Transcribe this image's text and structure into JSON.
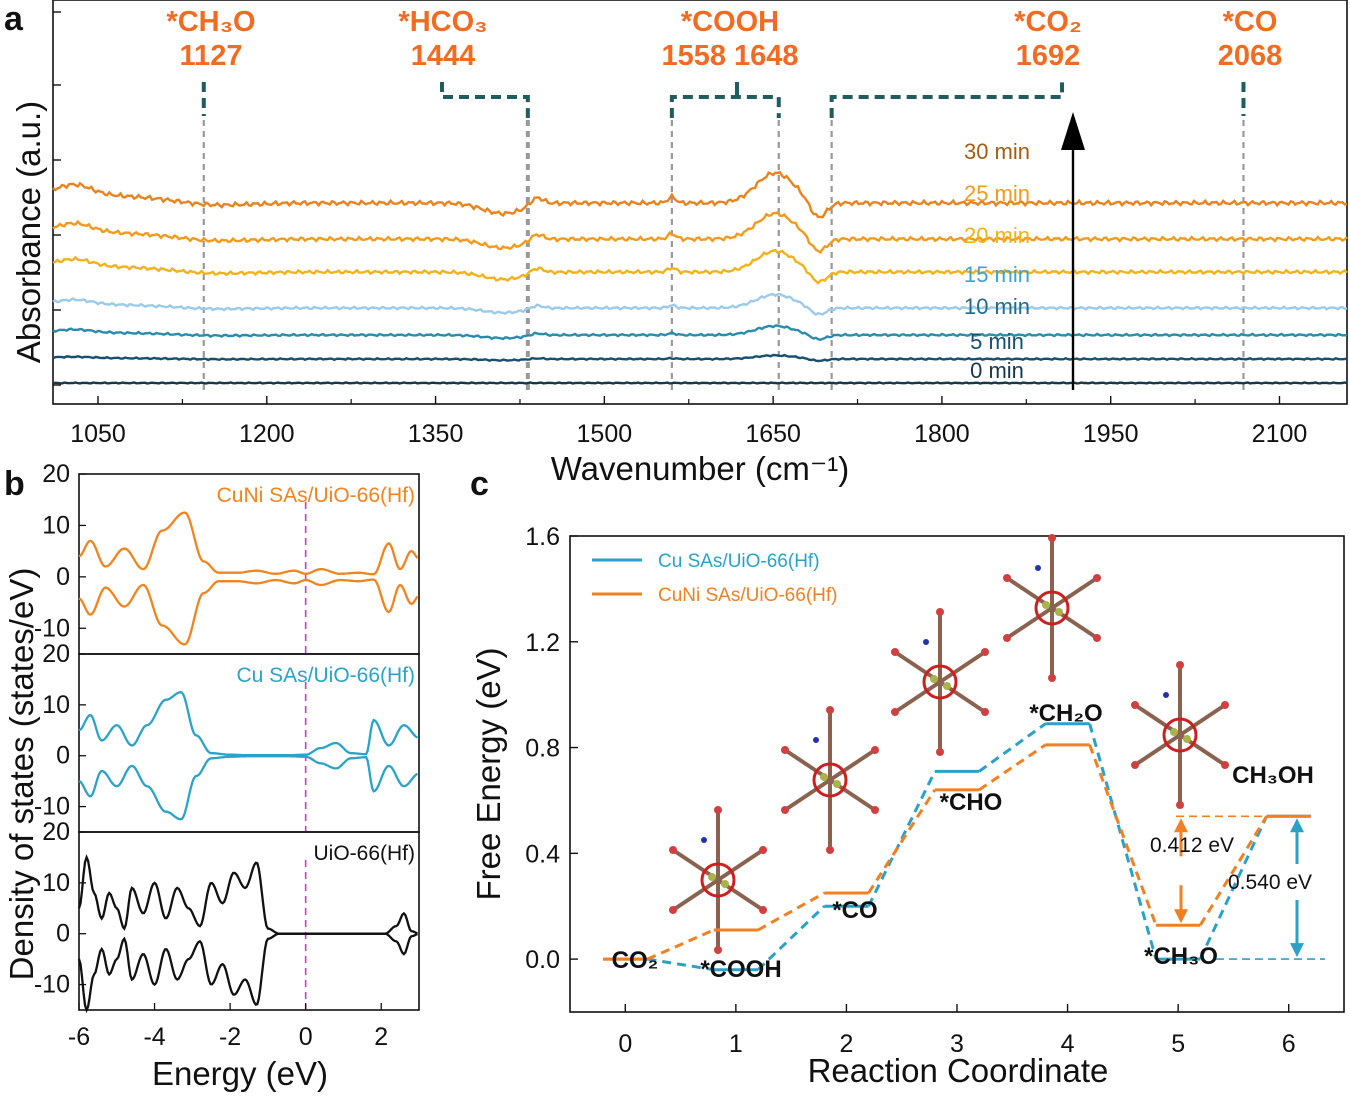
{
  "chart_data": [
    {
      "panel": "a",
      "type": "line",
      "xlabel": "Wavenumber (cm⁻¹)",
      "ylabel": "Absorbance (a.u.)",
      "xlim": [
        1010,
        2160
      ],
      "xticks": [
        1050,
        1200,
        1350,
        1500,
        1650,
        1800,
        1950,
        2100
      ],
      "marker_lines": [
        1144,
        1432,
        1560,
        1655,
        1702,
        2068
      ],
      "peak_labels": [
        {
          "species": "*CH₃O",
          "value": "1127"
        },
        {
          "species": "*HCO₃",
          "value": "1444"
        },
        {
          "species": "*COOH",
          "value": "1558 1648"
        },
        {
          "species": "*CO₂",
          "value": "1692"
        },
        {
          "species": "*CO",
          "value": "2068"
        }
      ],
      "series": [
        {
          "name": "30 min",
          "color": "#e8831f",
          "offset": 6.0,
          "scale": 1.0
        },
        {
          "name": "25 min",
          "color": "#f39a1c",
          "offset": 4.8,
          "scale": 0.85
        },
        {
          "name": "20 min",
          "color": "#f2b21a",
          "offset": 3.7,
          "scale": 0.7
        },
        {
          "name": "15 min",
          "color": "#9ccbe9",
          "offset": 2.5,
          "scale": 0.45
        },
        {
          "name": "10 min",
          "color": "#2a8cad",
          "offset": 1.6,
          "scale": 0.3
        },
        {
          "name": "5 min",
          "color": "#17506e",
          "offset": 0.8,
          "scale": 0.12
        },
        {
          "name": "0 min",
          "color": "#17384a",
          "offset": 0.0,
          "scale": 0.0
        }
      ],
      "legend_colors": [
        "#a55c12",
        "#f39a1c",
        "#f2b21a",
        "#3aa6cf",
        "#1e6c8c",
        "#17506e",
        "#17384a"
      ]
    },
    {
      "panel": "b",
      "type": "line",
      "xlabel": "Energy (eV)",
      "ylabel": "Density of states (states/eV)",
      "xlim": [
        -6,
        3
      ],
      "xticks": [
        -6,
        -4,
        -2,
        0,
        2
      ],
      "ylim": [
        -15,
        20
      ],
      "yticks": [
        20,
        10,
        0,
        -10
      ],
      "fermi_level": 0,
      "series": [
        {
          "name": "CuNi SAs/UiO-66(Hf)",
          "color": "#f0841e",
          "x": [
            -6.0,
            -5.7,
            -5.3,
            -4.8,
            -4.3,
            -3.8,
            -3.2,
            -2.7,
            -2.3,
            -1.8,
            -1.3,
            -0.8,
            -0.3,
            0.0,
            0.4,
            0.9,
            1.4,
            1.8,
            2.2,
            2.5,
            2.8,
            3.0
          ],
          "up": [
            4,
            7,
            2,
            5.5,
            1.5,
            9,
            12.5,
            3,
            0.8,
            0.8,
            1.2,
            0.6,
            1.2,
            0.6,
            1.5,
            0.6,
            0.8,
            0.5,
            6.5,
            1.5,
            5,
            3.5
          ]
        },
        {
          "name": "Cu SAs/UiO-66(Hf)",
          "color": "#2ba3c9",
          "x": [
            -6.0,
            -5.7,
            -5.4,
            -5.0,
            -4.6,
            -4.2,
            -3.7,
            -3.3,
            -2.9,
            -2.5,
            -2.0,
            -1.5,
            -1.0,
            -0.5,
            0.0,
            0.4,
            0.8,
            1.2,
            1.6,
            1.8,
            2.2,
            2.6,
            3.0
          ],
          "up": [
            5,
            8,
            3,
            6,
            2,
            6,
            11,
            12.5,
            4,
            0.5,
            0.2,
            0.1,
            0.1,
            0.1,
            0.2,
            1.5,
            2.5,
            0.5,
            0.3,
            7,
            2,
            6,
            3.5
          ]
        },
        {
          "name": "UiO-66(Hf)",
          "color": "#111111",
          "x": [
            -6.0,
            -5.8,
            -5.6,
            -5.4,
            -5.2,
            -5.0,
            -4.8,
            -4.6,
            -4.3,
            -4.0,
            -3.7,
            -3.4,
            -3.1,
            -2.8,
            -2.5,
            -2.2,
            -1.9,
            -1.6,
            -1.3,
            -1.0,
            -0.7,
            0.0,
            1.0,
            1.7,
            2.1,
            2.4,
            2.6,
            2.8,
            3.0
          ],
          "up": [
            5,
            15,
            8,
            3,
            8,
            5,
            1,
            9,
            4,
            10,
            3,
            9,
            5,
            1.5,
            10,
            6,
            12,
            9,
            14,
            1,
            0,
            0,
            0,
            0,
            0,
            1.5,
            4,
            0.5,
            0
          ]
        }
      ]
    },
    {
      "panel": "c",
      "type": "line",
      "xlabel": "Reaction Coordinate",
      "ylabel": "Free Energy (eV)",
      "xlim": [
        -0.5,
        6.5
      ],
      "ylim": [
        -0.2,
        1.6
      ],
      "xticks": [
        0,
        1,
        2,
        3,
        4,
        5,
        6
      ],
      "yticks": [
        0.0,
        0.4,
        0.8,
        1.2,
        1.6
      ],
      "steps": [
        0,
        1,
        2,
        3,
        4,
        5,
        6
      ],
      "states": [
        "CO₂",
        "*COOH",
        "*CO",
        "*CHO",
        "*CH₂O",
        "*CH₃O",
        "CH₃OH"
      ],
      "series": [
        {
          "name": "Cu SAs/UiO-66(Hf)",
          "color": "#2aa2c8",
          "values": [
            0.0,
            -0.04,
            0.2,
            0.71,
            0.89,
            0.0,
            0.54
          ]
        },
        {
          "name": "CuNi SAs/UiO-66(Hf)",
          "color": "#ef8124",
          "values": [
            0.0,
            0.11,
            0.25,
            0.64,
            0.81,
            0.128,
            0.54
          ]
        }
      ],
      "annotations": [
        "0.412 eV",
        "0.540 eV"
      ]
    }
  ],
  "panels": {
    "a": "a",
    "b": "b",
    "c": "c"
  },
  "icons": {
    "molecule": "molecule-structure-icon"
  }
}
